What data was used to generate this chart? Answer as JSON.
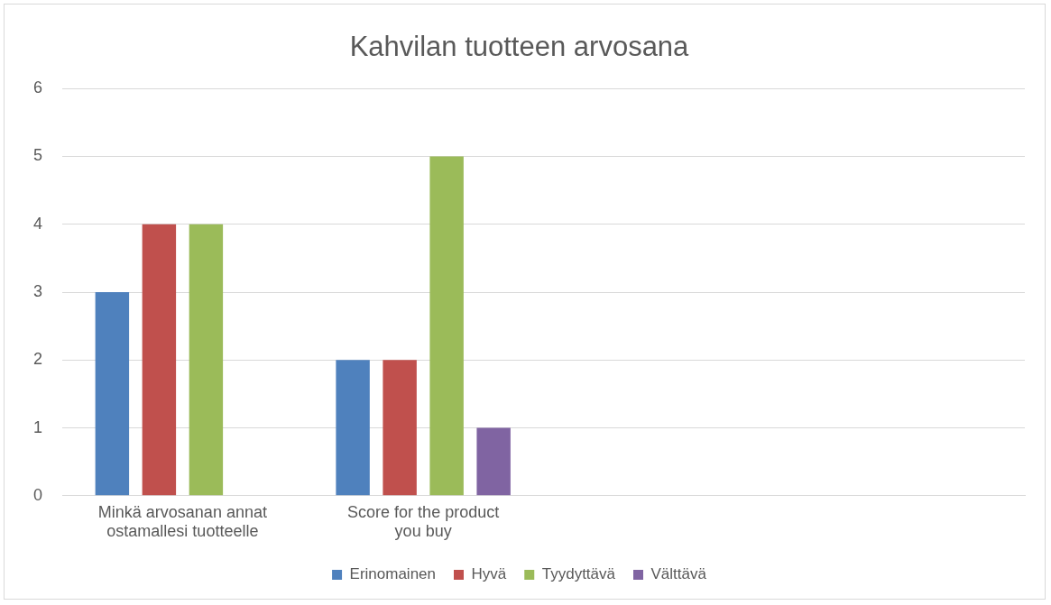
{
  "chart_data": {
    "type": "bar",
    "title": "Kahvilan tuotteen arvosana",
    "categories": [
      "Minkä arvosanan annat ostamallesi tuotteelle",
      "Score for the product you buy",
      null,
      null
    ],
    "series": [
      {
        "name": "Erinomainen",
        "color": "#4f81bd",
        "values": [
          3,
          2,
          null,
          null
        ]
      },
      {
        "name": "Hyvä",
        "color": "#c0504d",
        "values": [
          4,
          2,
          null,
          null
        ]
      },
      {
        "name": "Tyydyttävä",
        "color": "#9bbb59",
        "values": [
          4,
          5,
          null,
          null
        ]
      },
      {
        "name": "Välttävä",
        "color": "#8064a2",
        "values": [
          null,
          1,
          null,
          null
        ]
      }
    ],
    "ylim": [
      0,
      6
    ],
    "yticks": [
      0,
      1,
      2,
      3,
      4,
      5,
      6
    ],
    "grid": "y",
    "legend": "bottom"
  }
}
